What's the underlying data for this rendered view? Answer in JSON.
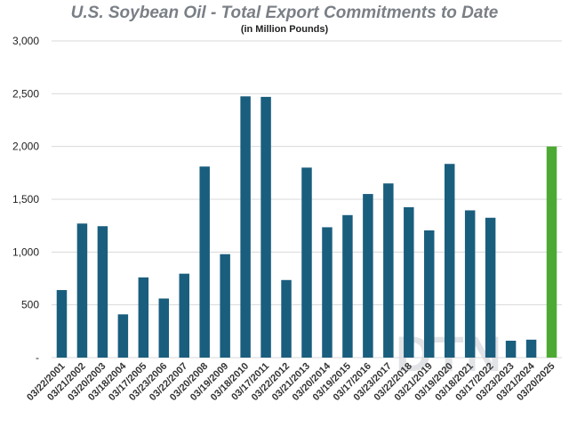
{
  "chart_data": {
    "type": "bar",
    "title": "U.S. Soybean Oil - Total Export Commitments to Date",
    "subtitle": "(in Million Pounds)",
    "xlabel": "",
    "ylabel": "",
    "ylim": [
      0,
      3000
    ],
    "yticks": [
      0,
      500,
      1000,
      1500,
      2000,
      2500,
      3000
    ],
    "ytick_labels": [
      "-",
      "500",
      "1,000",
      "1,500",
      "2,000",
      "2,500",
      "3,000"
    ],
    "grid": true,
    "legend": "none",
    "categories": [
      "03/22/2001",
      "03/21/2002",
      "03/20/2003",
      "03/18/2004",
      "03/17/2005",
      "03/23/2006",
      "03/22/2007",
      "03/20/2008",
      "03/19/2009",
      "03/18/2010",
      "03/17/2011",
      "03/22/2012",
      "03/21/2013",
      "03/20/2014",
      "03/19/2015",
      "03/17/2016",
      "03/23/2017",
      "03/22/2018",
      "03/21/2019",
      "03/19/2020",
      "03/18/2021",
      "03/17/2022",
      "03/23/2023",
      "03/21/2024",
      "03/20/2025"
    ],
    "values": [
      640,
      1270,
      1245,
      410,
      760,
      560,
      795,
      1810,
      980,
      2475,
      2470,
      735,
      1800,
      1235,
      1350,
      1550,
      1650,
      1425,
      1205,
      1835,
      1395,
      1325,
      160,
      170,
      2000
    ],
    "colors": {
      "bar": "#1a5e7e",
      "highlight": "#4caa33",
      "grid": "#d9d9d9"
    },
    "highlight_index": 24
  },
  "watermark": "DTN"
}
